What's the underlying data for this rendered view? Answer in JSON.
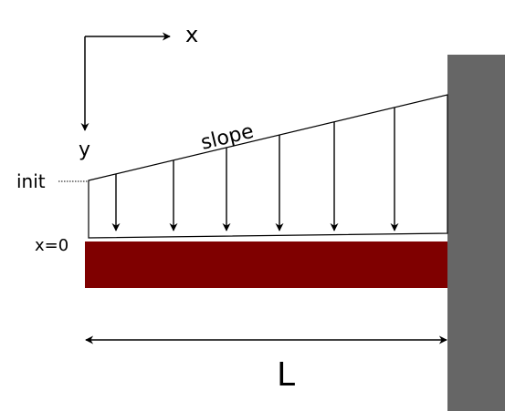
{
  "labels": {
    "x_axis": "x",
    "y_axis": "y",
    "slope": "slope",
    "init": "init",
    "origin": "x=0",
    "length": "L"
  },
  "colors": {
    "beam": "#7f0000",
    "wall": "#666666",
    "line": "#000000"
  },
  "load": {
    "arrow_count": 6
  }
}
